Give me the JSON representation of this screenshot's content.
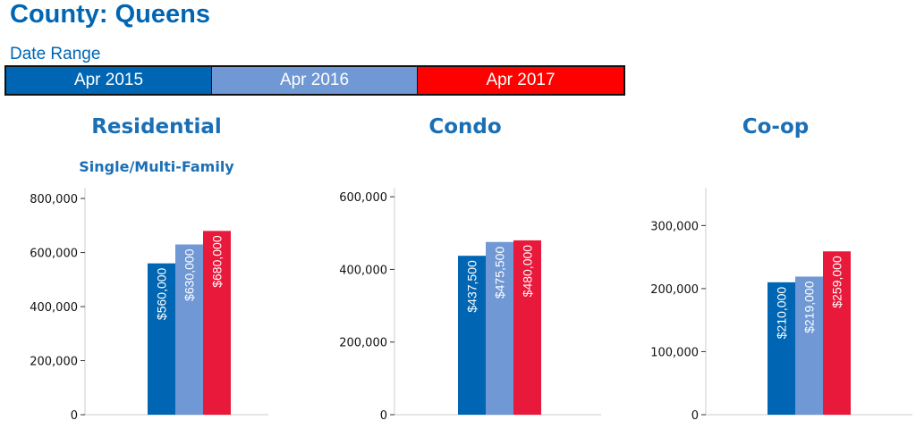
{
  "header": {
    "title": "County: Queens",
    "date_range_label": "Date Range"
  },
  "legend": [
    {
      "label": "Apr 2015",
      "color": "#0066b3"
    },
    {
      "label": "Apr 2016",
      "color": "#6f98d4"
    },
    {
      "label": "Apr 2017",
      "color": "#ff0000"
    }
  ],
  "bar_colors": [
    "#0066b3",
    "#6f98d4",
    "#e8193a"
  ],
  "chart_data": [
    {
      "type": "bar",
      "title": "Residential",
      "subtitle": "Single/Multi-Family",
      "series_labels": [
        "Apr 2015",
        "Apr 2016",
        "Apr 2017"
      ],
      "values": [
        560000,
        630000,
        680000
      ],
      "data_labels": [
        "$560,000",
        "$630,000",
        "$680,000"
      ],
      "yticks": [
        0,
        200000,
        400000,
        600000,
        800000
      ],
      "ytick_labels": [
        "0",
        "200,000",
        "400,000",
        "600,000",
        "800,000"
      ],
      "ylim": [
        0,
        840000
      ],
      "grid": false
    },
    {
      "type": "bar",
      "title": "Condo",
      "series_labels": [
        "Apr 2015",
        "Apr 2016",
        "Apr 2017"
      ],
      "values": [
        437500,
        475500,
        480000
      ],
      "data_labels": [
        "$437,500",
        "$475,500",
        "$480,000"
      ],
      "yticks": [
        0,
        200000,
        400000,
        600000
      ],
      "ytick_labels": [
        "0",
        "200,000",
        "400,000",
        "600,000"
      ],
      "ylim": [
        0,
        625000
      ],
      "grid": false
    },
    {
      "type": "bar",
      "title": "Co-op",
      "series_labels": [
        "Apr 2015",
        "Apr 2016",
        "Apr 2017"
      ],
      "values": [
        210000,
        219000,
        259000
      ],
      "data_labels": [
        "$210,000",
        "$219,000",
        "$259,000"
      ],
      "yticks": [
        0,
        100000,
        200000,
        300000
      ],
      "ytick_labels": [
        "0",
        "100,000",
        "200,000",
        "300,000"
      ],
      "ylim": [
        0,
        360000
      ],
      "grid": false
    }
  ]
}
